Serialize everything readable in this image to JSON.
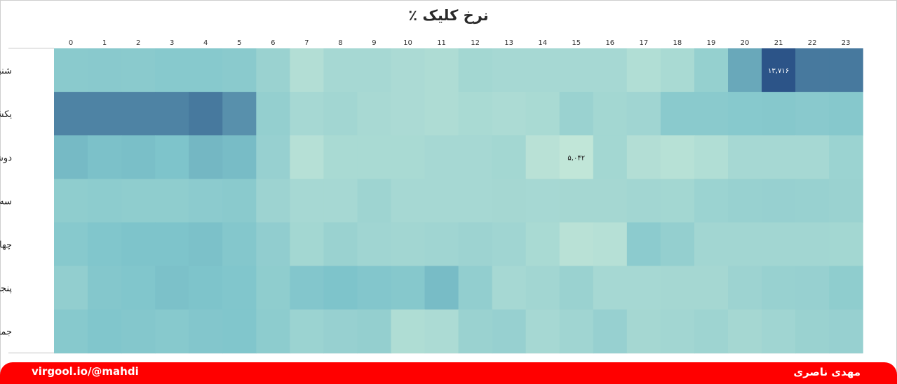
{
  "chart_data": {
    "type": "heatmap",
    "title": "نرخ کلیک ٪",
    "x": [
      "0",
      "1",
      "2",
      "3",
      "4",
      "5",
      "6",
      "7",
      "8",
      "9",
      "10",
      "11",
      "12",
      "13",
      "14",
      "15",
      "16",
      "17",
      "18",
      "19",
      "20",
      "21",
      "22",
      "23"
    ],
    "y": [
      "شنبه",
      "یکشنبه",
      "دوشنبه",
      "سه شنبه",
      "چهارشنبه",
      "پنجشنبه",
      "جمعه"
    ],
    "values": [
      [
        8.6,
        8.7,
        8.6,
        8.8,
        8.8,
        8.6,
        7.6,
        6.0,
        6.8,
        6.8,
        6.5,
        6.3,
        7.0,
        6.8,
        6.8,
        6.8,
        6.8,
        6.1,
        6.6,
        7.9,
        10.5,
        13.716,
        12.3,
        12.3
      ],
      [
        11.9,
        11.9,
        11.9,
        11.9,
        12.3,
        11.4,
        8.0,
        6.8,
        7.1,
        6.7,
        6.5,
        6.3,
        6.6,
        6.4,
        6.6,
        7.6,
        7.0,
        7.2,
        8.6,
        8.6,
        8.8,
        8.9,
        8.7,
        8.9
      ],
      [
        9.8,
        9.5,
        9.6,
        9.4,
        9.9,
        9.7,
        7.8,
        5.8,
        6.6,
        6.6,
        6.6,
        6.8,
        6.8,
        7.0,
        5.6,
        5.042,
        7.0,
        6.0,
        5.7,
        6.1,
        6.8,
        6.8,
        6.8,
        7.5
      ],
      [
        8.3,
        8.4,
        8.3,
        8.3,
        8.5,
        8.6,
        7.4,
        6.8,
        6.8,
        7.3,
        6.8,
        6.8,
        6.8,
        6.9,
        6.8,
        6.9,
        6.9,
        7.1,
        7.0,
        7.5,
        7.7,
        7.8,
        7.7,
        7.6
      ],
      [
        8.8,
        9.2,
        9.4,
        9.4,
        9.5,
        9.0,
        8.2,
        7.0,
        7.6,
        7.2,
        7.1,
        7.2,
        7.4,
        7.2,
        6.6,
        5.6,
        5.8,
        8.5,
        8.0,
        7.1,
        7.1,
        7.1,
        7.1,
        7.0
      ],
      [
        8.1,
        9.0,
        9.2,
        9.5,
        9.4,
        9.2,
        8.3,
        9.1,
        9.4,
        9.1,
        8.9,
        9.7,
        8.1,
        6.8,
        7.1,
        7.6,
        6.8,
        6.8,
        6.9,
        6.9,
        7.4,
        7.7,
        7.8,
        8.3
      ],
      [
        8.8,
        9.2,
        9.0,
        8.8,
        9.1,
        9.2,
        8.4,
        7.5,
        7.8,
        8.0,
        6.2,
        6.4,
        7.6,
        7.8,
        6.8,
        7.2,
        7.8,
        6.9,
        7.1,
        7.3,
        6.9,
        7.2,
        7.6,
        7.8
      ]
    ],
    "labels": [
      {
        "row": 0,
        "col": 21,
        "text": "۱۳,۷۱۶"
      },
      {
        "row": 2,
        "col": 15,
        "text": "۵,۰۴۲"
      }
    ],
    "colors": {
      "low": "#c2e6d8",
      "mid": "#7ec4cb",
      "high": "#2a5287"
    },
    "range": [
      5.0,
      13.8
    ]
  },
  "footer": {
    "left": "virgool.io/@mahdi",
    "right": "مهدی ناصری",
    "color": "#ff0000"
  }
}
